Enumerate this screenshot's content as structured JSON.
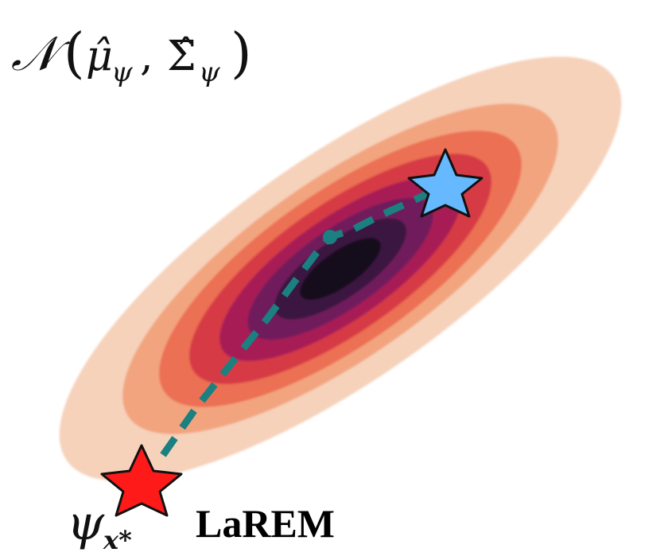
{
  "distribution": {
    "symbol": "𝒩",
    "mu": "μ̂",
    "sigma": "Σ̂",
    "subscript": "ψ",
    "open": "(",
    "comma": ",",
    "close": ")",
    "contour_colors": [
      "#f6d2bb",
      "#f2a47f",
      "#ec6f52",
      "#d63a45",
      "#a81f56",
      "#6f1c5c",
      "#3b1540",
      "#160b1f"
    ]
  },
  "start_point": {
    "symbol": "ψ",
    "subscript": "x*",
    "method": "LaREM",
    "star_color": "#ff1a1a"
  },
  "end_point": {
    "star_color": "#66b8ff"
  },
  "path": {
    "color": "#1a8080",
    "style": "dashed"
  }
}
